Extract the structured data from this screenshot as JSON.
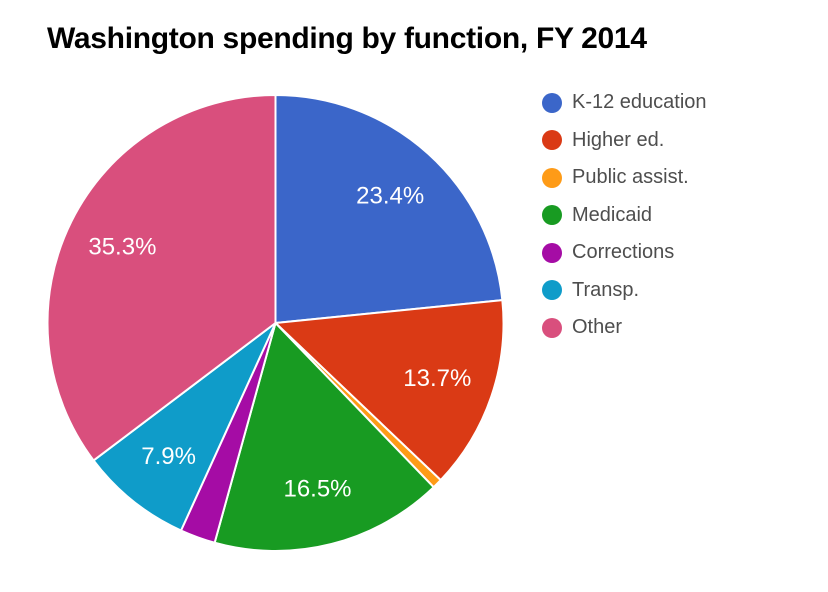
{
  "title": "Washington spending by function, FY 2014",
  "chart_data": {
    "type": "pie",
    "title": "Washington spending by function, FY 2014",
    "start_angle_deg": 0,
    "direction": "clockwise",
    "legend_position": "right",
    "label_color": "#ffffff",
    "slices": [
      {
        "label": "K-12 education",
        "value": 23.4,
        "pct_label": "23.4%",
        "color": "#3b66c9"
      },
      {
        "label": "Higher ed.",
        "value": 13.7,
        "pct_label": "13.7%",
        "color": "#da3a15"
      },
      {
        "label": "Public assist.",
        "value": 0.7,
        "pct_label": "",
        "color": "#fe9b17"
      },
      {
        "label": "Medicaid",
        "value": 16.5,
        "pct_label": "16.5%",
        "color": "#189b22"
      },
      {
        "label": "Corrections",
        "value": 2.5,
        "pct_label": "",
        "color": "#a50ca5"
      },
      {
        "label": "Transp.",
        "value": 7.9,
        "pct_label": "7.9%",
        "color": "#0f9cc9"
      },
      {
        "label": "Other",
        "value": 35.3,
        "pct_label": "35.3%",
        "color": "#d94f7d"
      }
    ]
  }
}
